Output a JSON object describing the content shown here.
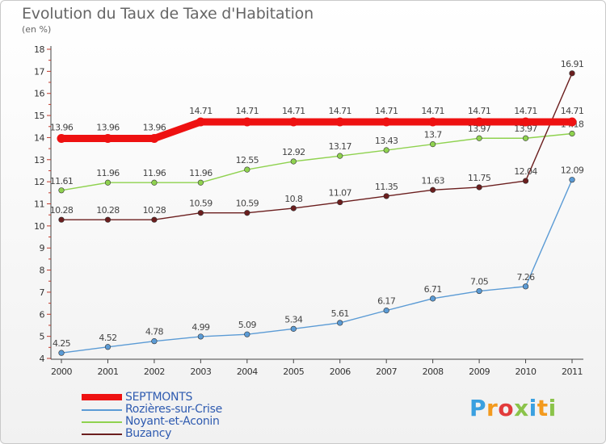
{
  "title": "Evolution du Taux de Taxe d'Habitation",
  "unit": "(en %)",
  "logo": "Proxiti",
  "chart_data": {
    "type": "line",
    "title": "Evolution du Taux de Taxe d'Habitation",
    "ylabel": "(en %)",
    "x": [
      "2000",
      "2001",
      "2002",
      "2003",
      "2004",
      "2005",
      "2006",
      "2007",
      "2008",
      "2009",
      "2010",
      "2011"
    ],
    "yticks": [
      "4",
      "5",
      "6",
      "7",
      "8",
      "9",
      "10",
      "11",
      "12",
      "13",
      "14",
      "15",
      "16",
      "17",
      "18"
    ],
    "ylim": [
      4,
      18
    ],
    "grid": false,
    "legend_position": "bottom-left",
    "series": [
      {
        "name": "SEPTMONTS",
        "color": "#ee1111",
        "values": [
          13.96,
          13.96,
          13.96,
          14.71,
          14.71,
          14.71,
          14.71,
          14.71,
          14.71,
          14.71,
          14.71,
          14.71
        ],
        "labels": [
          "13.96",
          "13.96",
          "13.96",
          "14.71",
          "14.71",
          "14.71",
          "14.71",
          "14.71",
          "14.71",
          "14.71",
          "14.71",
          "14.71"
        ]
      },
      {
        "name": "Rozières-sur-Crise",
        "color": "#5b9bd5",
        "values": [
          4.25,
          4.52,
          4.78,
          4.99,
          5.09,
          5.34,
          5.61,
          6.17,
          6.71,
          7.05,
          7.26,
          12.09
        ],
        "labels": [
          "4.25",
          "4.52",
          "4.78",
          "4.99",
          "5.09",
          "5.34",
          "5.61",
          "6.17",
          "6.71",
          "7.05",
          "7.26",
          "12.09"
        ]
      },
      {
        "name": "Noyant-et-Aconin",
        "color": "#8fd24f",
        "values": [
          11.61,
          11.96,
          11.96,
          11.96,
          12.55,
          12.92,
          13.17,
          13.43,
          13.7,
          13.97,
          13.97,
          14.18
        ],
        "labels": [
          "11.61",
          "11.96",
          "11.96",
          "11.96",
          "12.55",
          "12.92",
          "13.17",
          "13.43",
          "13.7",
          "13.97",
          "13.97",
          "14.18"
        ]
      },
      {
        "name": "Buzancy",
        "color": "#6b1e1e",
        "values": [
          10.28,
          10.28,
          10.28,
          10.59,
          10.59,
          10.8,
          11.07,
          11.35,
          11.63,
          11.75,
          12.04,
          16.91
        ],
        "labels": [
          "10.28",
          "10.28",
          "10.28",
          "10.59",
          "10.59",
          "10.8",
          "11.07",
          "11.35",
          "11.63",
          "11.75",
          "12.04",
          "16.91"
        ]
      }
    ]
  }
}
